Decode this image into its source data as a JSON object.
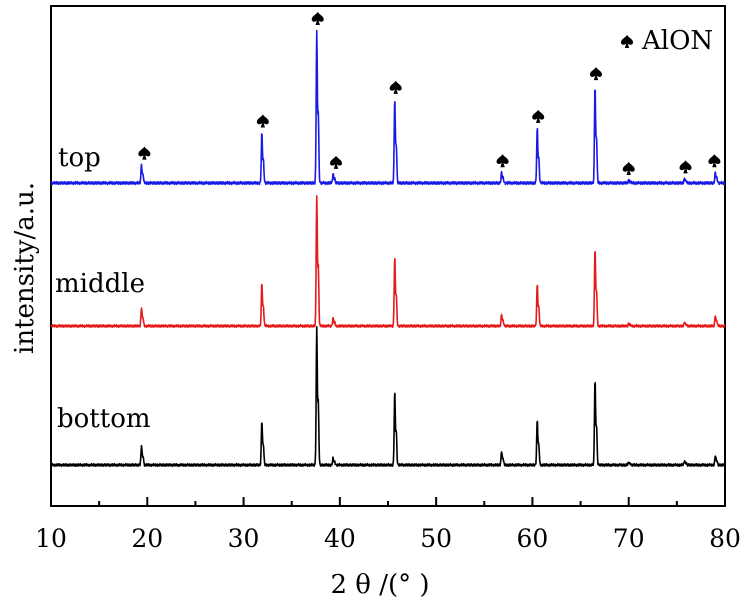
{
  "chart_data": {
    "type": "line",
    "xlabel": "2 θ /(°  )",
    "ylabel": "intensity/a.u.",
    "xlim": [
      10,
      80
    ],
    "x_ticks": [
      "10",
      "20",
      "30",
      "40",
      "50",
      "60",
      "70",
      "80"
    ],
    "grid": false,
    "legend": {
      "position": "top-right",
      "symbol": "spade-icon",
      "label": "AlON"
    },
    "series": [
      {
        "name": "top",
        "color": "#1a1ae6",
        "peaks": [
          {
            "x": 19.4,
            "y": 0.12
          },
          {
            "x": 31.9,
            "y": 0.33
          },
          {
            "x": 37.6,
            "y": 1.0
          },
          {
            "x": 39.3,
            "y": 0.06
          },
          {
            "x": 45.7,
            "y": 0.55
          },
          {
            "x": 56.8,
            "y": 0.07
          },
          {
            "x": 60.5,
            "y": 0.36
          },
          {
            "x": 66.5,
            "y": 0.64
          },
          {
            "x": 70.0,
            "y": 0.02
          },
          {
            "x": 75.8,
            "y": 0.03
          },
          {
            "x": 79.0,
            "y": 0.07
          }
        ]
      },
      {
        "name": "middle",
        "color": "#e61a1a",
        "peaks": [
          {
            "x": 19.4,
            "y": 0.14
          },
          {
            "x": 31.9,
            "y": 0.33
          },
          {
            "x": 37.6,
            "y": 1.0
          },
          {
            "x": 39.3,
            "y": 0.06
          },
          {
            "x": 45.7,
            "y": 0.53
          },
          {
            "x": 56.8,
            "y": 0.09
          },
          {
            "x": 60.5,
            "y": 0.32
          },
          {
            "x": 66.5,
            "y": 0.6
          },
          {
            "x": 70.0,
            "y": 0.02
          },
          {
            "x": 75.8,
            "y": 0.03
          },
          {
            "x": 79.0,
            "y": 0.08
          }
        ]
      },
      {
        "name": "bottom",
        "color": "#000000",
        "peaks": [
          {
            "x": 19.4,
            "y": 0.14
          },
          {
            "x": 31.9,
            "y": 0.32
          },
          {
            "x": 37.6,
            "y": 1.0
          },
          {
            "x": 39.3,
            "y": 0.05
          },
          {
            "x": 45.7,
            "y": 0.53
          },
          {
            "x": 56.8,
            "y": 0.1
          },
          {
            "x": 60.5,
            "y": 0.33
          },
          {
            "x": 66.5,
            "y": 0.62
          },
          {
            "x": 70.0,
            "y": 0.02
          },
          {
            "x": 75.8,
            "y": 0.03
          },
          {
            "x": 79.0,
            "y": 0.07
          }
        ]
      }
    ],
    "markers": [
      19.7,
      32.0,
      37.7,
      39.6,
      45.8,
      56.9,
      60.6,
      66.6,
      70.0,
      75.9,
      78.9
    ]
  }
}
